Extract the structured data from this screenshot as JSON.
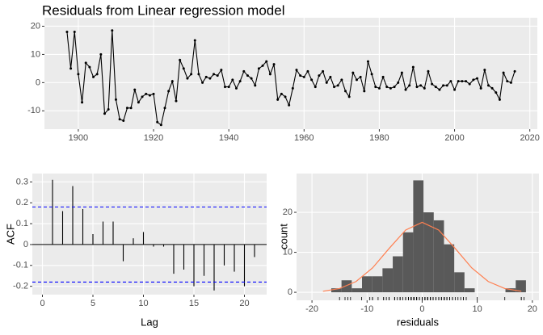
{
  "chart_data": [
    {
      "type": "line",
      "title": "Residuals from Linear regression model",
      "color": "#000000",
      "grid": true,
      "x": [
        1897,
        1898,
        1899,
        1900,
        1901,
        1902,
        1903,
        1904,
        1905,
        1906,
        1907,
        1908,
        1909,
        1910,
        1911,
        1912,
        1913,
        1914,
        1915,
        1916,
        1917,
        1918,
        1919,
        1920,
        1921,
        1922,
        1923,
        1924,
        1925,
        1926,
        1927,
        1928,
        1929,
        1930,
        1931,
        1932,
        1933,
        1934,
        1935,
        1936,
        1937,
        1938,
        1939,
        1940,
        1941,
        1942,
        1943,
        1944,
        1945,
        1946,
        1947,
        1948,
        1949,
        1950,
        1951,
        1952,
        1953,
        1954,
        1955,
        1956,
        1957,
        1958,
        1959,
        1960,
        1961,
        1962,
        1963,
        1964,
        1965,
        1966,
        1967,
        1968,
        1969,
        1970,
        1971,
        1972,
        1973,
        1974,
        1975,
        1976,
        1977,
        1978,
        1979,
        1980,
        1981,
        1982,
        1983,
        1984,
        1985,
        1986,
        1987,
        1988,
        1989,
        1990,
        1991,
        1992,
        1993,
        1994,
        1995,
        1996,
        1997,
        1998,
        1999,
        2000,
        2001,
        2002,
        2003,
        2004,
        2005,
        2006,
        2007,
        2008,
        2009,
        2010,
        2011,
        2012,
        2013,
        2014,
        2015,
        2016
      ],
      "values": [
        18,
        5,
        18,
        3,
        -7,
        7,
        5.5,
        2,
        3,
        10,
        -11,
        -9.5,
        18.5,
        -6,
        -13,
        -13.5,
        -9,
        -9,
        -2.5,
        -7,
        -5,
        -4,
        -4.5,
        -4,
        -14,
        -15,
        -9,
        -3,
        0.5,
        -6.5,
        8,
        5,
        1.5,
        3,
        15,
        3,
        0,
        2,
        1.5,
        3,
        2.5,
        4.5,
        -1.5,
        -1.5,
        1,
        -2,
        0.5,
        4,
        2.5,
        1.5,
        -1,
        5,
        6,
        7.5,
        3,
        6.5,
        -6,
        -4,
        -5,
        -8,
        -2,
        4.5,
        2.5,
        2,
        4,
        1,
        -1.5,
        2.5,
        4,
        0,
        2,
        -1.5,
        -1,
        1,
        -3,
        -5,
        3.5,
        1,
        2,
        -3,
        7.5,
        3,
        -1.5,
        -2,
        2,
        -1.5,
        -2,
        -1.5,
        0,
        3.5,
        -2.5,
        -1,
        5.5,
        -1.5,
        -1,
        -2,
        4,
        -0.5,
        -1.5,
        -2.5,
        -1,
        -1,
        0.5,
        -2.5,
        0.5,
        0.5,
        0.5,
        -0.5,
        1,
        1.5,
        -2,
        4.5,
        -1,
        -2,
        -3.5,
        -6,
        3.5,
        0.5,
        0,
        4
      ],
      "xlim": [
        1891,
        2022
      ],
      "xticks": [
        1900,
        1920,
        1940,
        1960,
        1980,
        2000,
        2020
      ],
      "ylim": [
        -16.5,
        23
      ],
      "yticks": [
        -10,
        0,
        10,
        20
      ]
    },
    {
      "type": "acf",
      "x_label": "Lag",
      "y_label": "ACF",
      "color": "#000000",
      "grid": true,
      "x": [
        1,
        2,
        3,
        4,
        5,
        6,
        7,
        8,
        9,
        10,
        11,
        12,
        13,
        14,
        15,
        16,
        17,
        18,
        19,
        20,
        21
      ],
      "values": [
        0.31,
        0.16,
        0.28,
        0.17,
        0.05,
        0.11,
        0.11,
        -0.08,
        0.03,
        0.06,
        -0.01,
        -0.01,
        -0.14,
        -0.12,
        -0.2,
        -0.15,
        -0.22,
        -0.1,
        -0.13,
        -0.2,
        -0.06
      ],
      "conf_limits": [
        0.18,
        -0.18
      ],
      "conf_color": "#0000ff",
      "xlim": [
        -1,
        22.2
      ],
      "xticks": [
        0,
        5,
        10,
        15,
        20
      ],
      "ylim": [
        -0.24,
        0.34
      ],
      "yticks": [
        -0.2,
        -0.1,
        0.0,
        0.1,
        0.2,
        0.3
      ]
    },
    {
      "type": "histogram",
      "x_label": "residuals",
      "y_label": "count",
      "color": "#595959",
      "grid": true,
      "bins": [
        -16.5,
        -14.64,
        -12.78,
        -10.92,
        -9.06,
        -7.2,
        -5.34,
        -3.48,
        -1.62,
        0.24,
        2.1,
        3.96,
        5.82,
        7.68,
        9.54,
        11.4,
        13.26,
        15.12,
        16.98,
        18.84
      ],
      "counts": [
        1,
        3,
        1,
        4,
        4,
        6,
        9,
        15,
        28,
        20,
        18,
        12,
        5,
        1,
        0,
        0,
        0,
        1,
        3
      ],
      "density_curve": {
        "color": "#ff7f50",
        "x": [
          -18,
          -15,
          -12,
          -9,
          -6,
          -3,
          0,
          3,
          6,
          9,
          12,
          15,
          18
        ],
        "y": [
          0.26,
          0.94,
          2.69,
          6.1,
          10.96,
          15.57,
          17.5,
          15.57,
          10.96,
          6.1,
          2.69,
          0.94,
          0.26
        ]
      },
      "xlim": [
        -22.8,
        21.2
      ],
      "xticks": [
        -20,
        -10,
        0,
        10,
        20
      ],
      "ylim": [
        -2,
        29.7
      ],
      "yticks": [
        0,
        10,
        20
      ]
    }
  ]
}
